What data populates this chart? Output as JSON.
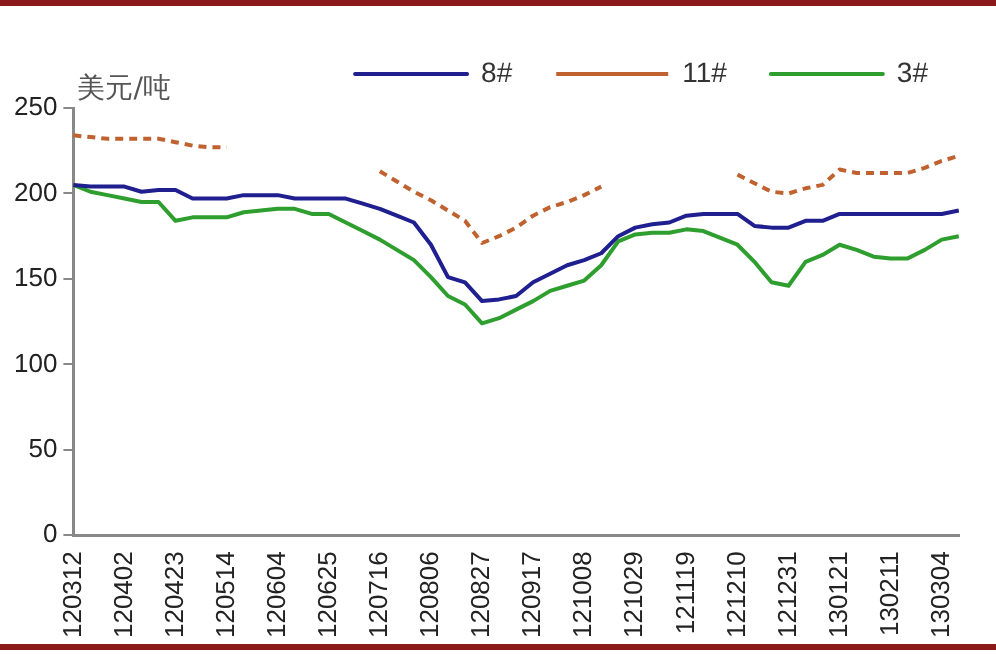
{
  "chart_data": {
    "type": "line",
    "ylabel": "美元/吨",
    "categories": [
      "120312",
      null,
      null,
      "120402",
      null,
      null,
      "120423",
      null,
      null,
      "120514",
      null,
      null,
      "120604",
      null,
      null,
      "120625",
      null,
      null,
      "120716",
      null,
      null,
      "120806",
      null,
      null,
      "120827",
      null,
      null,
      "120917",
      null,
      null,
      "121008",
      null,
      null,
      "121029",
      null,
      null,
      "121119",
      null,
      null,
      "121210",
      null,
      null,
      "121231",
      null,
      null,
      "130121",
      null,
      null,
      "130211",
      null,
      null,
      "130304",
      null
    ],
    "ylim": [
      0,
      250
    ],
    "yticks": [
      0,
      50,
      100,
      150,
      200,
      250
    ],
    "grid": false,
    "legend": "top",
    "marker": "none",
    "series": [
      {
        "name": "8#",
        "color": "#1f1f8f",
        "line_style": "solid",
        "values": [
          205,
          204,
          204,
          204,
          201,
          202,
          202,
          197,
          197,
          197,
          199,
          199,
          199,
          197,
          197,
          197,
          197,
          194,
          191,
          187,
          183,
          170,
          151,
          148,
          137,
          138,
          140,
          148,
          153,
          158,
          161,
          165,
          175,
          180,
          182,
          183,
          187,
          188,
          188,
          188,
          181,
          180,
          180,
          184,
          184,
          188,
          188,
          188,
          188,
          188,
          188,
          188,
          190
        ]
      },
      {
        "name": "11#",
        "color": "#c0622f",
        "line_style": "dashed",
        "values": [
          234,
          233,
          232,
          232,
          232,
          232,
          230,
          228,
          227,
          227,
          null,
          null,
          null,
          null,
          null,
          null,
          null,
          null,
          213,
          207,
          201,
          196,
          190,
          184,
          171,
          175,
          180,
          187,
          192,
          195,
          199,
          204,
          null,
          null,
          null,
          null,
          null,
          null,
          null,
          211,
          206,
          201,
          200,
          203,
          205,
          214,
          212,
          212,
          212,
          212,
          215,
          219,
          222
        ]
      },
      {
        "name": "3#",
        "color": "#2e9e2e",
        "line_style": "solid",
        "values": [
          205,
          201,
          199,
          197,
          195,
          195,
          184,
          186,
          186,
          186,
          189,
          190,
          191,
          191,
          188,
          188,
          183,
          178,
          173,
          167,
          161,
          151,
          140,
          135,
          124,
          127,
          132,
          137,
          143,
          146,
          149,
          158,
          172,
          176,
          177,
          177,
          179,
          178,
          174,
          170,
          160,
          148,
          146,
          160,
          164,
          170,
          167,
          163,
          162,
          162,
          167,
          173,
          175
        ]
      }
    ]
  }
}
